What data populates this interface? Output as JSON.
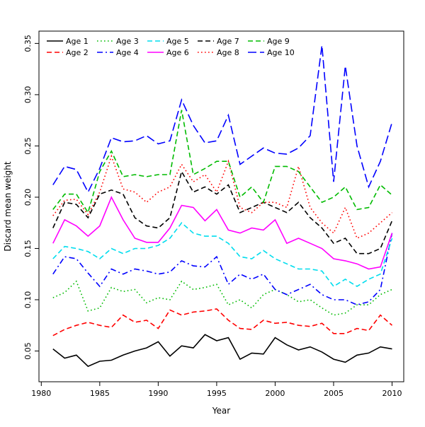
{
  "chart": {
    "xlabel": "Year",
    "ylabel": "Discard mean weight"
  },
  "chart_data": {
    "type": "line",
    "title": "",
    "xlabel": "Year",
    "ylabel": "Discard mean weight",
    "xlim": [
      1979.8,
      2011.0
    ],
    "ylim": [
      0.02,
      0.362
    ],
    "xticks": [
      1980,
      1985,
      1990,
      1995,
      2000,
      2005,
      2010
    ],
    "yticks": [
      0.05,
      0.1,
      0.15,
      0.2,
      0.25,
      0.3,
      0.35
    ],
    "grid": false,
    "legend_position": "top-inside",
    "x": [
      1981,
      1982,
      1983,
      1984,
      1985,
      1986,
      1987,
      1988,
      1989,
      1990,
      1991,
      1992,
      1993,
      1994,
      1995,
      1996,
      1997,
      1998,
      1999,
      2000,
      2001,
      2002,
      2003,
      2004,
      2005,
      2006,
      2007,
      2008,
      2009,
      2010
    ],
    "series": [
      {
        "name": "Age 1",
        "color": "#000000",
        "dash": "solid",
        "values": [
          0.052,
          0.043,
          0.046,
          0.035,
          0.04,
          0.041,
          0.046,
          0.05,
          0.053,
          0.059,
          0.045,
          0.055,
          0.053,
          0.066,
          0.06,
          0.063,
          0.042,
          0.048,
          0.047,
          0.063,
          0.056,
          0.051,
          0.054,
          0.049,
          0.042,
          0.039,
          0.046,
          0.048,
          0.054,
          0.052
        ]
      },
      {
        "name": "Age 2",
        "color": "#FF0000",
        "dash": "dashed",
        "values": [
          0.065,
          0.071,
          0.075,
          0.078,
          0.075,
          0.073,
          0.085,
          0.078,
          0.08,
          0.072,
          0.09,
          0.085,
          0.088,
          0.089,
          0.091,
          0.08,
          0.072,
          0.071,
          0.08,
          0.077,
          0.078,
          0.075,
          0.074,
          0.077,
          0.067,
          0.067,
          0.072,
          0.07,
          0.085,
          0.075
        ]
      },
      {
        "name": "Age 3",
        "color": "#00BB00",
        "dash": "dotted",
        "values": [
          0.102,
          0.107,
          0.118,
          0.089,
          0.092,
          0.112,
          0.108,
          0.11,
          0.097,
          0.102,
          0.1,
          0.118,
          0.11,
          0.112,
          0.115,
          0.095,
          0.1,
          0.092,
          0.105,
          0.11,
          0.105,
          0.098,
          0.1,
          0.092,
          0.085,
          0.087,
          0.095,
          0.095,
          0.105,
          0.11
        ]
      },
      {
        "name": "Age 4",
        "color": "#0000FF",
        "dash": "dashdot",
        "values": [
          0.125,
          0.142,
          0.14,
          0.126,
          0.113,
          0.13,
          0.125,
          0.13,
          0.128,
          0.125,
          0.127,
          0.138,
          0.133,
          0.132,
          0.142,
          0.115,
          0.125,
          0.12,
          0.125,
          0.11,
          0.105,
          0.11,
          0.115,
          0.105,
          0.1,
          0.1,
          0.095,
          0.098,
          0.11,
          0.165
        ]
      },
      {
        "name": "Age 5",
        "color": "#00DDEE",
        "dash": "dashed",
        "values": [
          0.14,
          0.152,
          0.15,
          0.147,
          0.14,
          0.15,
          0.145,
          0.15,
          0.15,
          0.153,
          0.16,
          0.175,
          0.165,
          0.162,
          0.162,
          0.155,
          0.142,
          0.14,
          0.148,
          0.14,
          0.135,
          0.13,
          0.13,
          0.128,
          0.113,
          0.12,
          0.113,
          0.12,
          0.125,
          0.16
        ]
      },
      {
        "name": "Age 6",
        "color": "#FF00FF",
        "dash": "solid",
        "values": [
          0.155,
          0.178,
          0.172,
          0.162,
          0.172,
          0.2,
          0.178,
          0.16,
          0.156,
          0.156,
          0.17,
          0.192,
          0.19,
          0.177,
          0.188,
          0.168,
          0.165,
          0.17,
          0.168,
          0.178,
          0.155,
          0.16,
          0.155,
          0.15,
          0.14,
          0.138,
          0.135,
          0.13,
          0.132,
          0.165
        ]
      },
      {
        "name": "Age 7",
        "color": "#000000",
        "dash": "dashed",
        "values": [
          0.17,
          0.195,
          0.193,
          0.18,
          0.203,
          0.207,
          0.203,
          0.18,
          0.172,
          0.17,
          0.18,
          0.225,
          0.205,
          0.21,
          0.203,
          0.212,
          0.185,
          0.19,
          0.195,
          0.19,
          0.185,
          0.195,
          0.18,
          0.17,
          0.155,
          0.16,
          0.145,
          0.145,
          0.15,
          0.177
        ]
      },
      {
        "name": "Age 8",
        "color": "#FF0000",
        "dash": "dotted",
        "values": [
          0.182,
          0.197,
          0.198,
          0.183,
          0.205,
          0.24,
          0.208,
          0.205,
          0.195,
          0.205,
          0.21,
          0.232,
          0.215,
          0.222,
          0.205,
          0.235,
          0.19,
          0.185,
          0.195,
          0.195,
          0.19,
          0.23,
          0.19,
          0.175,
          0.165,
          0.19,
          0.16,
          0.165,
          0.175,
          0.185
        ]
      },
      {
        "name": "Age 9",
        "color": "#00BB00",
        "dash": "dashed",
        "values": [
          0.188,
          0.203,
          0.203,
          0.185,
          0.225,
          0.245,
          0.22,
          0.222,
          0.22,
          0.222,
          0.222,
          0.285,
          0.222,
          0.228,
          0.235,
          0.235,
          0.2,
          0.21,
          0.195,
          0.23,
          0.23,
          0.225,
          0.21,
          0.195,
          0.2,
          0.21,
          0.188,
          0.19,
          0.212,
          0.202
        ]
      },
      {
        "name": "Age 10",
        "color": "#0000FF",
        "dash": "longdash",
        "values": [
          0.212,
          0.23,
          0.227,
          0.205,
          0.228,
          0.258,
          0.254,
          0.255,
          0.26,
          0.252,
          0.255,
          0.295,
          0.27,
          0.253,
          0.255,
          0.28,
          0.232,
          0.24,
          0.248,
          0.243,
          0.242,
          0.248,
          0.26,
          0.348,
          0.215,
          0.328,
          0.25,
          0.21,
          0.235,
          0.273
        ]
      }
    ]
  }
}
